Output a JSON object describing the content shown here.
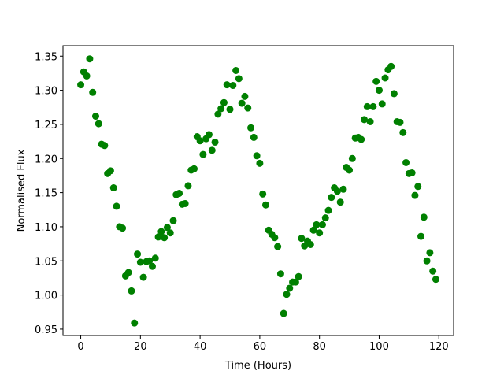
{
  "chart_data": {
    "type": "scatter",
    "x_label": "Time (Hours)",
    "y_label": "Normalised Flux",
    "color": "#008000",
    "x": [
      0,
      1,
      2,
      3,
      4,
      5,
      6,
      7,
      8,
      9,
      10,
      11,
      12,
      13,
      14,
      15,
      16,
      17,
      18,
      19,
      20,
      21,
      22,
      23,
      24,
      25,
      26,
      27,
      28,
      29,
      30,
      31,
      32,
      33,
      34,
      35,
      36,
      37,
      38,
      39,
      40,
      41,
      42,
      43,
      44,
      45,
      46,
      47,
      48,
      49,
      50,
      51,
      52,
      53,
      54,
      55,
      56,
      57,
      58,
      59,
      60,
      61,
      62,
      63,
      64,
      65,
      66,
      67,
      68,
      69,
      70,
      71,
      72,
      73,
      74,
      75,
      76,
      77,
      78,
      79,
      80,
      81,
      82,
      83,
      84,
      85,
      86,
      87,
      88,
      89,
      90,
      91,
      92,
      93,
      94,
      95,
      96,
      97,
      98,
      99,
      100,
      101,
      102,
      103,
      104,
      105,
      106,
      107,
      108,
      109,
      110,
      111,
      112,
      113,
      114,
      115,
      116,
      117,
      118,
      119
    ],
    "values": [
      1.308,
      1.327,
      1.321,
      1.346,
      1.297,
      1.262,
      1.251,
      1.221,
      1.219,
      1.178,
      1.182,
      1.157,
      1.13,
      1.1,
      1.098,
      1.028,
      1.033,
      1.006,
      0.959,
      1.06,
      1.048,
      1.026,
      1.049,
      1.05,
      1.042,
      1.054,
      1.085,
      1.093,
      1.084,
      1.099,
      1.091,
      1.109,
      1.147,
      1.149,
      1.133,
      1.134,
      1.16,
      1.183,
      1.185,
      1.232,
      1.226,
      1.206,
      1.229,
      1.235,
      1.212,
      1.224,
      1.265,
      1.273,
      1.282,
      1.308,
      1.272,
      1.307,
      1.329,
      1.317,
      1.281,
      1.291,
      1.274,
      1.245,
      1.231,
      1.204,
      1.193,
      1.148,
      1.132,
      1.095,
      1.089,
      1.084,
      1.071,
      1.031,
      0.973,
      1.001,
      1.01,
      1.019,
      1.019,
      1.027,
      1.083,
      1.072,
      1.079,
      1.074,
      1.095,
      1.103,
      1.091,
      1.103,
      1.113,
      1.124,
      1.143,
      1.157,
      1.152,
      1.136,
      1.155,
      1.187,
      1.183,
      1.2,
      1.23,
      1.231,
      1.228,
      1.257,
      1.276,
      1.254,
      1.276,
      1.313,
      1.3,
      1.28,
      1.318,
      1.33,
      1.335,
      1.295,
      1.254,
      1.253,
      1.238,
      1.194,
      1.178,
      1.179,
      1.146,
      1.159,
      1.086,
      1.114,
      1.05,
      1.062,
      1.035,
      1.023
    ],
    "xlim": [
      -5.95,
      124.95
    ],
    "xticks": [
      0,
      20,
      40,
      60,
      80,
      100,
      120
    ],
    "ylim": [
      0.9407,
      1.3653
    ],
    "yticks": [
      0.95,
      {
        "value": 1.0,
        "label": "1.00"
      },
      1.05,
      {
        "value": 1.1,
        "label": "1.10"
      },
      1.15,
      {
        "value": 1.2,
        "label": "1.20"
      },
      1.25,
      {
        "value": 1.3,
        "label": "1.30"
      },
      1.35
    ]
  }
}
